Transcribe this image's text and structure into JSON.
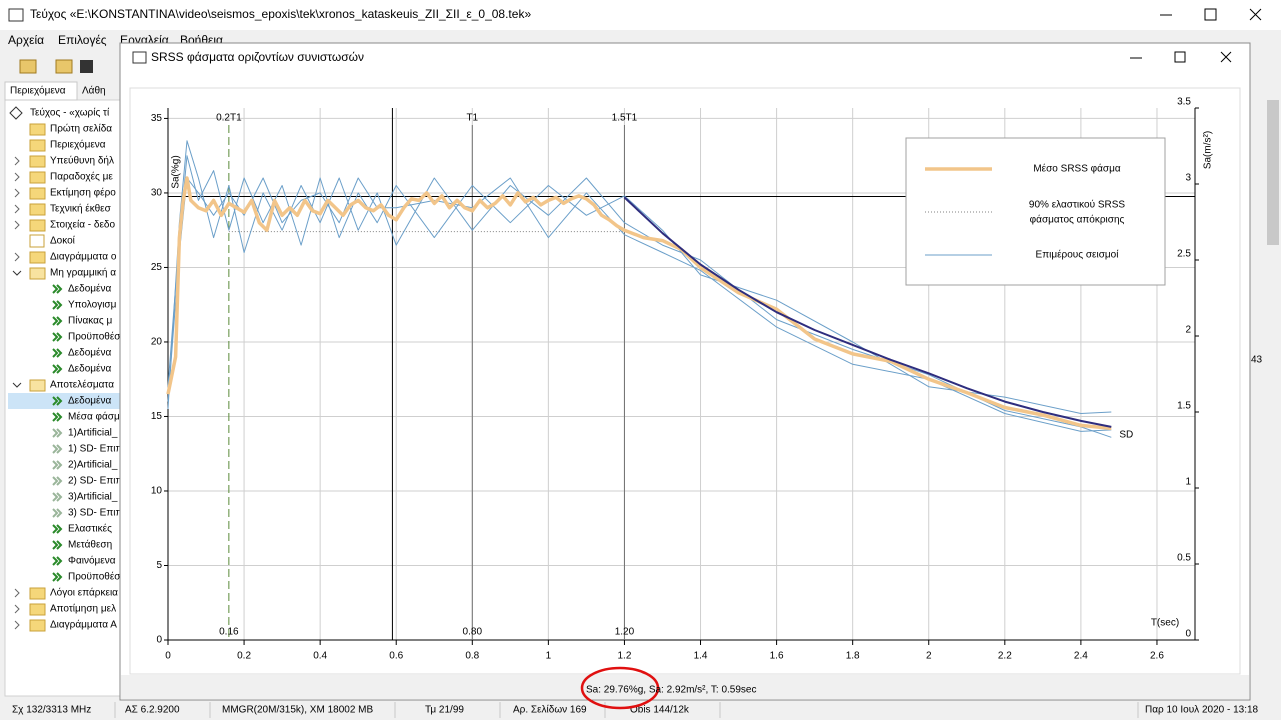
{
  "window": {
    "title": "Τεύχος «E:\\KONSTANTINA\\video\\seismos_epoxis\\tek\\xronos_kataskeuis_ZII_ΣII_ε_0_08.tek»",
    "menu": [
      "Αρχεία",
      "Επιλογές",
      "Εργαλεία",
      "Βοήθεια"
    ],
    "tabs": [
      "Περιεχόμενα",
      "Λάθη"
    ],
    "side_text": "43"
  },
  "tree": [
    {
      "label": "Τεύχος - «χωρίς τί",
      "level": 0,
      "icon": "diamond"
    },
    {
      "label": "Πρώτη σελίδα",
      "level": 1,
      "icon": "folder"
    },
    {
      "label": "Περιεχόμενα",
      "level": 1,
      "icon": "folder"
    },
    {
      "label": "Υπεύθυνη δήλ",
      "level": 1,
      "icon": "folder",
      "toggle": "closed"
    },
    {
      "label": "Παραδοχές με",
      "level": 1,
      "icon": "folder",
      "toggle": "closed"
    },
    {
      "label": "Εκτίμηση φέρο",
      "level": 1,
      "icon": "folder",
      "toggle": "closed"
    },
    {
      "label": "Τεχνική έκθεσ",
      "level": 1,
      "icon": "folder",
      "toggle": "closed"
    },
    {
      "label": "Στοιχεία - δεδο",
      "level": 1,
      "icon": "folder",
      "toggle": "closed"
    },
    {
      "label": "Δοκοί",
      "level": 1,
      "icon": "gear"
    },
    {
      "label": "Διαγράμματα ο",
      "level": 1,
      "icon": "folder",
      "toggle": "closed"
    },
    {
      "label": "Μη γραμμική α",
      "level": 1,
      "icon": "folder-open",
      "toggle": "open"
    },
    {
      "label": "Δεδομένα",
      "level": 2,
      "icon": "arrow"
    },
    {
      "label": "Υπολογισμ",
      "level": 2,
      "icon": "arrow"
    },
    {
      "label": "Πίνακας μ",
      "level": 2,
      "icon": "arrow"
    },
    {
      "label": "Προϋποθέσ",
      "level": 2,
      "icon": "arrow"
    },
    {
      "label": "Δεδομένα",
      "level": 2,
      "icon": "arrow"
    },
    {
      "label": "Δεδομένα",
      "level": 2,
      "icon": "arrow"
    },
    {
      "label": "Αποτελέσματα",
      "level": 1,
      "icon": "folder-open",
      "toggle": "open"
    },
    {
      "label": "Δεδομένα",
      "level": 2,
      "icon": "arrow",
      "selected": true
    },
    {
      "label": "Μέσα φάσμ",
      "level": 2,
      "icon": "arrow"
    },
    {
      "label": "1)Artificial_",
      "level": 2,
      "icon": "arrow-grey"
    },
    {
      "label": "1) SD- Επιπ",
      "level": 2,
      "icon": "arrow-grey"
    },
    {
      "label": "2)Artificial_",
      "level": 2,
      "icon": "arrow-grey"
    },
    {
      "label": "2) SD- Επιπ",
      "level": 2,
      "icon": "arrow-grey"
    },
    {
      "label": "3)Artificial_",
      "level": 2,
      "icon": "arrow-grey"
    },
    {
      "label": "3) SD- Επιπ",
      "level": 2,
      "icon": "arrow-grey"
    },
    {
      "label": "Ελαστικές",
      "level": 2,
      "icon": "arrow"
    },
    {
      "label": "Μετάθεση",
      "level": 2,
      "icon": "arrow"
    },
    {
      "label": "Φαινόμενα",
      "level": 2,
      "icon": "arrow"
    },
    {
      "label": "Προϋποθέσ",
      "level": 2,
      "icon": "arrow"
    },
    {
      "label": "Λόγοι επάρκεια",
      "level": 1,
      "icon": "folder",
      "toggle": "closed"
    },
    {
      "label": "Αποτίμηση μελ",
      "level": 1,
      "icon": "folder",
      "toggle": "closed"
    },
    {
      "label": "Διαγράμματα Α",
      "level": 1,
      "icon": "folder",
      "toggle": "closed"
    }
  ],
  "status_bar": [
    "Σχ 132/3313 MHz",
    "ΑΣ 6.2.9200",
    "MMGR(20M/315k), XM 18002 MB",
    "Τμ 21/99",
    "Αρ. Σελίδων 169",
    "Obis 144/12k",
    "Παρ 10 Ιουλ 2020 - 13:18"
  ],
  "dialog": {
    "title": "SRSS φάσματα οριζοντίων συνιστωσών",
    "status": "Sa: 29.76%g, Sa: 2.92m/s², T: 0.59sec"
  },
  "chart_data": {
    "type": "line",
    "ylabel": "Sa(%g)",
    "y2label": "Sa(m/s²)",
    "xlabel": "T(sec)",
    "xlim": [
      0,
      2.7
    ],
    "xticks": [
      0,
      0.2,
      0.4,
      0.6,
      0.8,
      1,
      1.2,
      1.4,
      1.6,
      1.8,
      2,
      2.2,
      2.4,
      2.6
    ],
    "ylim": [
      0,
      35.7
    ],
    "yticks": [
      0,
      5,
      10,
      15,
      20,
      25,
      30,
      35
    ],
    "y2lim": [
      0,
      3.5
    ],
    "y2ticks": [
      0,
      0.5,
      1,
      1.5,
      2,
      2.5,
      3,
      3.5
    ],
    "grid": true,
    "series": [
      {
        "name": "Επιμέρους σεισμοί",
        "color": "#6b9fc9",
        "lines": [
          {
            "x": [
              0,
              0.03,
              0.05,
              0.08,
              0.12,
              0.16,
              0.2,
              0.25,
              0.3,
              0.35,
              0.4,
              0.45,
              0.5,
              0.55,
              0.6,
              0.7,
              0.8,
              0.9,
              1.0,
              1.1,
              1.2,
              1.3,
              1.4,
              1.6,
              1.8,
              2.0,
              2.2,
              2.4,
              2.48
            ],
            "values": [
              15.5,
              28,
              33.5,
              31,
              27,
              30.5,
              26,
              30,
              27.5,
              30.5,
              28,
              31,
              27.5,
              30,
              26.5,
              31,
              27.5,
              30.5,
              28.5,
              31,
              28,
              26.5,
              25.5,
              21.5,
              19.5,
              17.8,
              15.4,
              14.3,
              13.6
            ]
          },
          {
            "x": [
              0,
              0.03,
              0.05,
              0.08,
              0.12,
              0.16,
              0.2,
              0.25,
              0.3,
              0.35,
              0.4,
              0.45,
              0.5,
              0.55,
              0.6,
              0.7,
              0.8,
              0.9,
              1.0,
              1.1,
              1.2,
              1.3,
              1.4,
              1.6,
              1.8,
              2.0,
              2.2,
              2.4,
              2.48
            ],
            "values": [
              17,
              27,
              32.5,
              29.5,
              31.5,
              27.5,
              31,
              28,
              30.5,
              26.5,
              31,
              27,
              30,
              28,
              30.5,
              27,
              30.5,
              28,
              30.5,
              28.5,
              29.8,
              27.5,
              24.5,
              22.8,
              20,
              17,
              16.3,
              15.2,
              15.3
            ]
          },
          {
            "x": [
              0,
              0.03,
              0.05,
              0.08,
              0.12,
              0.16,
              0.2,
              0.25,
              0.3,
              0.35,
              0.4,
              0.45,
              0.5,
              0.55,
              0.6,
              0.7,
              0.8,
              0.9,
              1.0,
              1.1,
              1.2,
              1.3,
              1.4,
              1.6,
              1.8,
              2.0,
              2.2,
              2.4,
              2.48
            ],
            "values": [
              16,
              26,
              31,
              30,
              28.5,
              30,
              28.5,
              31,
              28,
              29.5,
              30,
              28,
              31,
              29,
              29,
              29.5,
              29,
              31,
              27,
              30,
              27.2,
              26,
              24.8,
              21,
              18.5,
              17.5,
              15.2,
              14,
              14.1
            ]
          }
        ]
      },
      {
        "name": "Μέσο SRSS φάσμα",
        "color": "#f2c58a",
        "x": [
          0,
          0.02,
          0.03,
          0.04,
          0.05,
          0.06,
          0.08,
          0.1,
          0.12,
          0.14,
          0.16,
          0.18,
          0.2,
          0.22,
          0.24,
          0.26,
          0.28,
          0.3,
          0.32,
          0.34,
          0.36,
          0.38,
          0.4,
          0.42,
          0.44,
          0.46,
          0.48,
          0.5,
          0.52,
          0.54,
          0.56,
          0.58,
          0.6,
          0.62,
          0.64,
          0.66,
          0.68,
          0.7,
          0.72,
          0.74,
          0.76,
          0.78,
          0.8,
          0.82,
          0.84,
          0.86,
          0.88,
          0.9,
          0.92,
          0.94,
          0.96,
          0.98,
          1.0,
          1.02,
          1.04,
          1.06,
          1.08,
          1.1,
          1.12,
          1.14,
          1.16,
          1.18,
          1.2,
          1.25,
          1.3,
          1.35,
          1.4,
          1.5,
          1.6,
          1.7,
          1.8,
          1.9,
          2.0,
          2.1,
          2.2,
          2.3,
          2.4,
          2.48
        ],
        "values": [
          16.5,
          19,
          27,
          29.5,
          31,
          29.5,
          29,
          28.8,
          29.5,
          28.5,
          29.3,
          29,
          28.7,
          29.5,
          28,
          27.5,
          29.5,
          28.5,
          29,
          28.5,
          29.5,
          28.8,
          28.6,
          29.5,
          29,
          28.5,
          29.2,
          29.5,
          29,
          28.8,
          29.2,
          28.5,
          28.2,
          29,
          29.6,
          29.5,
          30,
          29.3,
          29.8,
          29,
          29.5,
          29,
          28.8,
          29.5,
          29,
          29.3,
          29.8,
          29.2,
          30,
          29.4,
          29.7,
          29.2,
          29.5,
          29.7,
          29.3,
          29.6,
          29.8,
          29.6,
          29.2,
          28.5,
          28.2,
          27.8,
          27.5,
          27,
          26.8,
          26.2,
          25,
          23.3,
          22.2,
          20.2,
          19.2,
          18.7,
          17.5,
          16.6,
          15.6,
          15.1,
          14.4,
          14.2
        ]
      },
      {
        "name": "SD",
        "color": "#2e2d7e",
        "x": [
          1.2,
          1.3,
          1.4,
          1.5,
          1.6,
          1.7,
          1.8,
          1.9,
          2.0,
          2.1,
          2.2,
          2.3,
          2.4,
          2.48
        ],
        "values": [
          29.7,
          27.3,
          25.2,
          23.5,
          22.0,
          20.8,
          19.8,
          18.8,
          17.9,
          16.9,
          16.0,
          15.3,
          14.7,
          14.3
        ]
      }
    ],
    "reference_line": {
      "name_lines": [
        "90% ελαστικού SRSS",
        "φάσματος απόκρισης"
      ],
      "value": 27.4,
      "from": 0.16,
      "to": 1.2,
      "color": "#808080"
    },
    "markers": [
      {
        "name": "0.2T1",
        "value": 0.16,
        "label": "0.16",
        "style": "dashed",
        "color": "#5a8a3a"
      },
      {
        "name": "T1",
        "value": 0.8,
        "label": "0.80",
        "style": "solid",
        "color": "#707070"
      },
      {
        "name": "1.5T1",
        "value": 1.2,
        "label": "1.20",
        "style": "solid",
        "color": "#707070"
      }
    ],
    "cursor": {
      "x": 0.59,
      "y": 29.76
    },
    "legend": "top-right"
  }
}
